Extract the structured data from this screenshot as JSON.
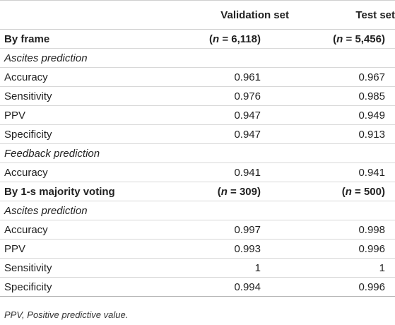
{
  "header": {
    "col0": "",
    "col1": "Validation set",
    "col2": "Test set"
  },
  "sections": [
    {
      "title": "By frame",
      "n_validation": "6,118",
      "n_test": "5,456",
      "groups": [
        {
          "title": "Ascites prediction",
          "rows": [
            {
              "label": "Accuracy",
              "validation": "0.961",
              "test": "0.967"
            },
            {
              "label": "Sensitivity",
              "validation": "0.976",
              "test": "0.985"
            },
            {
              "label": "PPV",
              "validation": "0.947",
              "test": "0.949"
            },
            {
              "label": "Specificity",
              "validation": "0.947",
              "test": "0.913"
            }
          ]
        },
        {
          "title": "Feedback prediction",
          "rows": [
            {
              "label": "Accuracy",
              "validation": "0.941",
              "test": "0.941"
            }
          ]
        }
      ]
    },
    {
      "title": "By 1-s majority voting",
      "n_validation": "309",
      "n_test": "500",
      "groups": [
        {
          "title": "Ascites prediction",
          "rows": [
            {
              "label": "Accuracy",
              "validation": "0.997",
              "test": "0.998"
            },
            {
              "label": "PPV",
              "validation": "0.993",
              "test": "0.996"
            },
            {
              "label": "Sensitivity",
              "validation": "1",
              "test": "1"
            },
            {
              "label": "Specificity",
              "validation": "0.994",
              "test": "0.996"
            }
          ]
        }
      ]
    }
  ],
  "n_symbol": "n",
  "n_prefix": "(",
  "n_eq": " = ",
  "n_suffix": ")",
  "footnote": "PPV, Positive predictive value."
}
